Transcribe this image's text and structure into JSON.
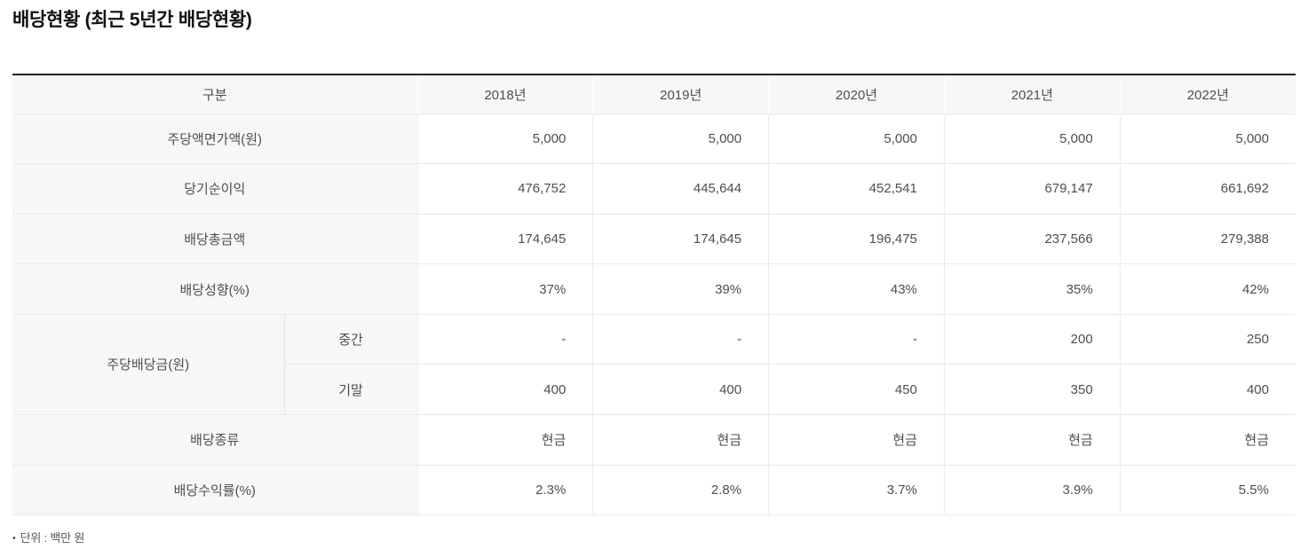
{
  "title": "배당현황 (최근 5년간 배당현황)",
  "footnote": {
    "bullet": "•",
    "text": "단위 : 백만 원"
  },
  "theme": {
    "top_border": "#222222",
    "panel_bg": "#f7f7f7",
    "row_divider": "#e9e9e9",
    "col_divider": "#ececec",
    "header_col_divider": "#ffffff",
    "sub_col_divider": "#e4e4e4",
    "text": "#4e4e4e",
    "title_text": "#111111",
    "footnote_text": "#555555"
  },
  "table": {
    "header": {
      "category": "구분",
      "years": [
        "2018년",
        "2019년",
        "2020년",
        "2021년",
        "2022년"
      ]
    },
    "rows": {
      "par_value": {
        "label": "주당액면가액(원)",
        "values": [
          "5,000",
          "5,000",
          "5,000",
          "5,000",
          "5,000"
        ]
      },
      "net_income": {
        "label": "당기순이익",
        "values": [
          "476,752",
          "445,644",
          "452,541",
          "679,147",
          "661,692"
        ]
      },
      "total_dividend": {
        "label": "배당총금액",
        "values": [
          "174,645",
          "174,645",
          "196,475",
          "237,566",
          "279,388"
        ]
      },
      "payout_ratio": {
        "label": "배당성향(%)",
        "values": [
          "37%",
          "39%",
          "43%",
          "35%",
          "42%"
        ]
      },
      "dps": {
        "label": "주당배당금(원)",
        "interim": {
          "label": "중간",
          "values": [
            "-",
            "-",
            "-",
            "200",
            "250"
          ]
        },
        "final": {
          "label": "기말",
          "values": [
            "400",
            "400",
            "450",
            "350",
            "400"
          ]
        }
      },
      "dividend_type": {
        "label": "배당종류",
        "values": [
          "현금",
          "현금",
          "현금",
          "현금",
          "현금"
        ]
      },
      "dividend_yield": {
        "label": "배당수익률(%)",
        "values": [
          "2.3%",
          "2.8%",
          "3.7%",
          "3.9%",
          "5.5%"
        ]
      }
    }
  }
}
